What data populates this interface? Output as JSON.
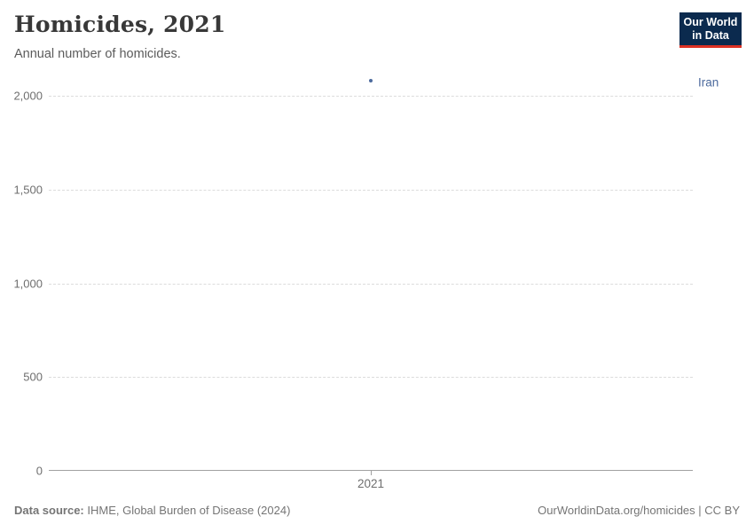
{
  "header": {
    "title": "Homicides, 2021",
    "subtitle": "Annual number of homicides.",
    "logo": {
      "line1": "Our World",
      "line2": "in Data"
    }
  },
  "chart_data": {
    "type": "scatter",
    "title": "Homicides, 2021",
    "subtitle": "Annual number of homicides.",
    "xlabel": "",
    "ylabel": "",
    "x_categories": [
      "2021"
    ],
    "series": [
      {
        "name": "Iran",
        "x": [
          2021
        ],
        "values": [
          2080
        ]
      }
    ],
    "ylim": [
      0,
      2000
    ],
    "yticks": [
      0,
      500,
      1000,
      1500,
      2000
    ],
    "ytick_labels": [
      "0",
      "500",
      "1,000",
      "1,500",
      "2,000"
    ],
    "grid": "horizontal-dashed",
    "legend_position": "right-of-point",
    "point_color": "#4c6a9d",
    "entity_label_color": "#4c6a9d"
  },
  "footer": {
    "datasource_label": "Data source:",
    "datasource_value": " IHME, Global Burden of Disease (2024)",
    "license": "OurWorldinData.org/homicides | CC BY"
  }
}
